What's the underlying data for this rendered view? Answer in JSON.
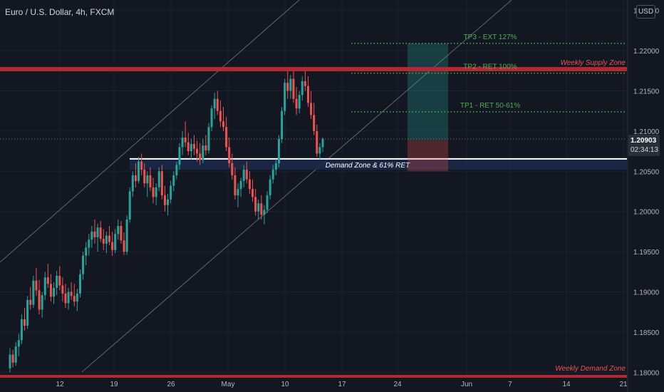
{
  "header": {
    "symbol_title": "Euro / U.S. Dollar, 4h, FXCM",
    "currency_label": "USD"
  },
  "price_tag": {
    "price": "1.20903",
    "countdown": "02:34:13"
  },
  "chart_data": {
    "type": "candlestick",
    "symbol": "Euro / U.S. Dollar",
    "timeframe": "4h",
    "broker": "FXCM",
    "ylim": [
      1.1795,
      1.2263
    ],
    "y_ticks": [
      "1.22500",
      "1.22000",
      "1.21500",
      "1.21000",
      "1.20500",
      "1.20000",
      "1.19500",
      "1.19000",
      "1.18500",
      "1.18000"
    ],
    "x_ticks": [
      "12",
      "19",
      "26",
      "May",
      "10",
      "17",
      "24",
      "Jun",
      "7",
      "14",
      "21"
    ],
    "grid": true,
    "current_price": 1.20903,
    "colors": {
      "background": "#131722",
      "grid": "#1e222d",
      "up": "#26a69a",
      "down": "#ef5350",
      "zone": "#b22833",
      "zone_label": "#ef5350",
      "target": "#4caf50",
      "demand_fill": "#1c2a4a",
      "channel": "#9598a1"
    },
    "candles": [
      [
        1.1805,
        1.183,
        1.18,
        1.1822
      ],
      [
        1.1822,
        1.1828,
        1.1806,
        1.1812
      ],
      [
        1.1812,
        1.1838,
        1.1808,
        1.1832
      ],
      [
        1.1832,
        1.1848,
        1.182,
        1.184
      ],
      [
        1.184,
        1.1872,
        1.1835,
        1.1866
      ],
      [
        1.1866,
        1.188,
        1.1852,
        1.1858
      ],
      [
        1.1858,
        1.1895,
        1.1854,
        1.189
      ],
      [
        1.189,
        1.1906,
        1.1878,
        1.1884
      ],
      [
        1.1884,
        1.192,
        1.188,
        1.1914
      ],
      [
        1.1914,
        1.193,
        1.1895,
        1.1902
      ],
      [
        1.1902,
        1.1915,
        1.1872,
        1.1878
      ],
      [
        1.1878,
        1.19,
        1.1868,
        1.1896
      ],
      [
        1.1896,
        1.1925,
        1.189,
        1.1918
      ],
      [
        1.1918,
        1.1935,
        1.1905,
        1.191
      ],
      [
        1.191,
        1.1922,
        1.1888,
        1.1894
      ],
      [
        1.1894,
        1.1912,
        1.1885,
        1.1905
      ],
      [
        1.1905,
        1.1926,
        1.1896,
        1.192
      ],
      [
        1.192,
        1.1932,
        1.1902,
        1.1908
      ],
      [
        1.1908,
        1.1918,
        1.1888,
        1.1898
      ],
      [
        1.1898,
        1.191,
        1.188,
        1.1886
      ],
      [
        1.1886,
        1.1905,
        1.1878,
        1.19
      ],
      [
        1.19,
        1.1912,
        1.189,
        1.1895
      ],
      [
        1.1895,
        1.191,
        1.1882,
        1.1888
      ],
      [
        1.1888,
        1.1904,
        1.1876,
        1.1898
      ],
      [
        1.1898,
        1.1928,
        1.1893,
        1.1922
      ],
      [
        1.1922,
        1.195,
        1.1915,
        1.1945
      ],
      [
        1.1945,
        1.1962,
        1.1933,
        1.1955
      ],
      [
        1.1955,
        1.1972,
        1.1945,
        1.1965
      ],
      [
        1.1965,
        1.1982,
        1.1955,
        1.1975
      ],
      [
        1.1975,
        1.199,
        1.196,
        1.1968
      ],
      [
        1.1968,
        1.1985,
        1.195,
        1.198
      ],
      [
        1.198,
        1.1988,
        1.1962,
        1.1966
      ],
      [
        1.1966,
        1.1978,
        1.1952,
        1.196
      ],
      [
        1.196,
        1.1975,
        1.1948,
        1.197
      ],
      [
        1.197,
        1.1982,
        1.1958,
        1.1962
      ],
      [
        1.1962,
        1.1975,
        1.1945,
        1.1952
      ],
      [
        1.1952,
        1.1978,
        1.1948,
        1.1972
      ],
      [
        1.1972,
        1.199,
        1.1965,
        1.1982
      ],
      [
        1.1982,
        1.1988,
        1.196,
        1.1964
      ],
      [
        1.1964,
        1.1974,
        1.1946,
        1.195
      ],
      [
        1.195,
        1.1995,
        1.1946,
        1.199
      ],
      [
        1.199,
        1.203,
        1.1986,
        1.2025
      ],
      [
        1.2025,
        1.205,
        1.2018,
        1.2045
      ],
      [
        1.2045,
        1.206,
        1.203,
        1.2038
      ],
      [
        1.2038,
        1.2068,
        1.2035,
        1.2062
      ],
      [
        1.2062,
        1.2072,
        1.2045,
        1.2052
      ],
      [
        1.2052,
        1.206,
        1.203,
        1.2035
      ],
      [
        1.2035,
        1.205,
        1.2018,
        1.2045
      ],
      [
        1.2045,
        1.2055,
        1.2025,
        1.203
      ],
      [
        1.203,
        1.2042,
        1.201,
        1.2018
      ],
      [
        1.2018,
        1.2035,
        1.2008,
        1.203
      ],
      [
        1.203,
        1.2055,
        1.2025,
        1.205
      ],
      [
        1.205,
        1.2058,
        1.2015,
        1.202
      ],
      [
        1.202,
        1.2032,
        1.2,
        1.2008
      ],
      [
        1.2008,
        1.2022,
        1.1995,
        1.2015
      ],
      [
        1.2015,
        1.2038,
        1.201,
        1.2032
      ],
      [
        1.2032,
        1.205,
        1.2025,
        1.2045
      ],
      [
        1.2045,
        1.2062,
        1.204,
        1.2058
      ],
      [
        1.2058,
        1.2085,
        1.2052,
        1.208
      ],
      [
        1.208,
        1.21,
        1.207,
        1.2092
      ],
      [
        1.2092,
        1.2112,
        1.208,
        1.2086
      ],
      [
        1.2086,
        1.2098,
        1.207,
        1.2075
      ],
      [
        1.2075,
        1.209,
        1.2065,
        1.2084
      ],
      [
        1.2084,
        1.2095,
        1.207,
        1.2078
      ],
      [
        1.2078,
        1.2088,
        1.2062,
        1.2072
      ],
      [
        1.2072,
        1.2085,
        1.2058,
        1.2064
      ],
      [
        1.2064,
        1.209,
        1.206,
        1.2082
      ],
      [
        1.2082,
        1.2095,
        1.207,
        1.2076
      ],
      [
        1.2076,
        1.211,
        1.2072,
        1.2105
      ],
      [
        1.2105,
        1.2132,
        1.21,
        1.2128
      ],
      [
        1.2128,
        1.2148,
        1.2115,
        1.214
      ],
      [
        1.214,
        1.215,
        1.212,
        1.2125
      ],
      [
        1.2125,
        1.2138,
        1.2105,
        1.2112
      ],
      [
        1.2112,
        1.213,
        1.21,
        1.2105
      ],
      [
        1.2105,
        1.2118,
        1.2075,
        1.208
      ],
      [
        1.208,
        1.2092,
        1.2055,
        1.206
      ],
      [
        1.206,
        1.2072,
        1.204,
        1.2045
      ],
      [
        1.2045,
        1.2055,
        1.2015,
        1.202
      ],
      [
        1.202,
        1.2035,
        1.2005,
        1.2028
      ],
      [
        1.2028,
        1.2042,
        1.2018,
        1.2038
      ],
      [
        1.2038,
        1.2058,
        1.203,
        1.2052
      ],
      [
        1.2052,
        1.2062,
        1.2035,
        1.204
      ],
      [
        1.204,
        1.205,
        1.2022,
        1.2028
      ],
      [
        1.2028,
        1.204,
        1.2012,
        1.2018
      ],
      [
        1.2018,
        1.2028,
        1.1995,
        1.2
      ],
      [
        1.2,
        1.2015,
        1.199,
        1.201
      ],
      [
        1.201,
        1.202,
        1.199,
        1.1996
      ],
      [
        1.1996,
        1.2008,
        1.1984,
        1.2002
      ],
      [
        1.2002,
        1.2025,
        1.1998,
        1.202
      ],
      [
        1.202,
        1.2045,
        1.2015,
        1.204
      ],
      [
        1.204,
        1.2058,
        1.2035,
        1.2052
      ],
      [
        1.2052,
        1.2065,
        1.2045,
        1.206
      ],
      [
        1.206,
        1.2095,
        1.2055,
        1.209
      ],
      [
        1.209,
        1.213,
        1.2085,
        1.2125
      ],
      [
        1.2125,
        1.2165,
        1.212,
        1.216
      ],
      [
        1.216,
        1.2176,
        1.214,
        1.215
      ],
      [
        1.215,
        1.217,
        1.214,
        1.2165
      ],
      [
        1.2165,
        1.2178,
        1.2135,
        1.214
      ],
      [
        1.214,
        1.2155,
        1.212,
        1.2128
      ],
      [
        1.2128,
        1.215,
        1.2122,
        1.2145
      ],
      [
        1.2145,
        1.2168,
        1.2138,
        1.2162
      ],
      [
        1.2162,
        1.218,
        1.215,
        1.2156
      ],
      [
        1.2156,
        1.2168,
        1.213,
        1.2135
      ],
      [
        1.2135,
        1.215,
        1.2115,
        1.212
      ],
      [
        1.212,
        1.2135,
        1.2095,
        1.21
      ],
      [
        1.21,
        1.2108,
        1.2068,
        1.2072
      ],
      [
        1.2072,
        1.2085,
        1.2065,
        1.208
      ],
      [
        1.208,
        1.2092,
        1.2074,
        1.209
      ]
    ],
    "annotations": {
      "tp3": {
        "label": "TP3 - EXT 127%",
        "price": 1.2209
      },
      "supply_zone": {
        "label": "Weekly Supply Zone",
        "price": 1.2177
      },
      "tp2": {
        "label": "TP2 - RET 100%",
        "price": 1.2172
      },
      "tp1": {
        "label": "TP1 - RET 50-61%",
        "price": 1.2124
      },
      "demand_zone": {
        "label": "Demand Zone & 61% RET",
        "top": 1.20655,
        "bottom": 1.2052
      },
      "demand_weekly": {
        "label": "Weekly Demand Zone",
        "price": 1.1795
      },
      "position": {
        "entry": 1.2089,
        "target": 1.2209,
        "stop": 1.205
      }
    }
  }
}
